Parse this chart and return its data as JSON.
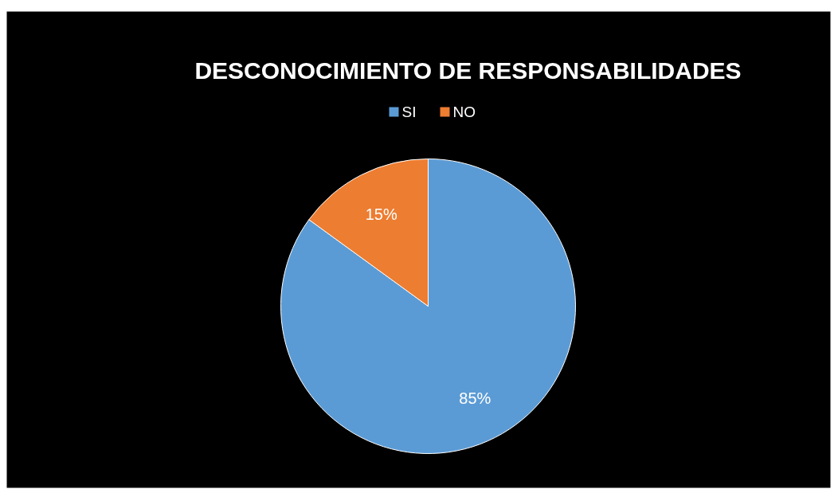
{
  "chart_data": {
    "type": "pie",
    "title": "DESCONOCIMIENTO DE RESPONSABILIDADES",
    "categories": [
      "SI",
      "NO"
    ],
    "values": [
      85,
      15
    ],
    "colors": [
      "#5b9bd5",
      "#ed7d31"
    ],
    "value_labels": [
      "85%",
      "15%"
    ],
    "legend": "top"
  }
}
